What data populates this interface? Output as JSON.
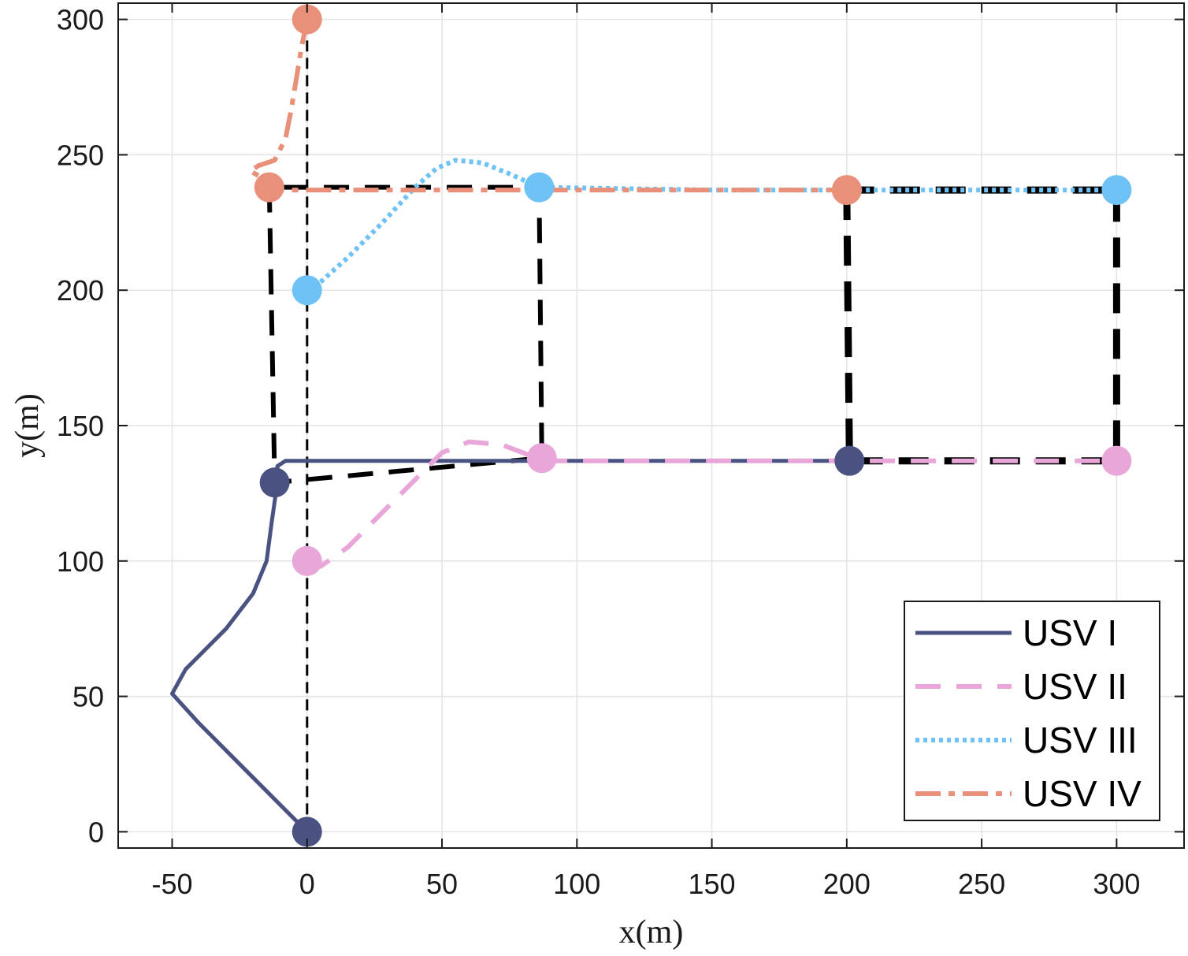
{
  "chart_data": {
    "type": "line",
    "xlabel": "x(m)",
    "ylabel": "y(m)",
    "xlim": [
      -70,
      325
    ],
    "ylim": [
      -6,
      306
    ],
    "xticks": [
      -50,
      0,
      50,
      100,
      150,
      200,
      250,
      300
    ],
    "yticks": [
      0,
      50,
      100,
      150,
      200,
      250,
      300
    ],
    "grid": true,
    "legend_position": "bottom-right",
    "series": [
      {
        "name": "USV I",
        "color": "#4a5282",
        "style": "solid",
        "points": [
          [
            0,
            0
          ],
          [
            -20,
            20
          ],
          [
            -40,
            40
          ],
          [
            -50,
            51
          ],
          [
            -45,
            60
          ],
          [
            -30,
            75
          ],
          [
            -20,
            88
          ],
          [
            -15,
            100
          ],
          [
            -13,
            115
          ],
          [
            -11,
            129
          ],
          [
            -11,
            135
          ],
          [
            -8,
            137
          ],
          [
            0,
            137
          ],
          [
            50,
            137
          ],
          [
            87,
            137
          ],
          [
            150,
            137
          ],
          [
            201,
            137
          ]
        ],
        "markers": [
          [
            0,
            0
          ],
          [
            -12,
            129
          ],
          [
            201,
            137
          ]
        ]
      },
      {
        "name": "USV II",
        "color": "#e8a7d8",
        "style": "dashed",
        "points": [
          [
            0,
            100
          ],
          [
            5,
            98
          ],
          [
            15,
            105
          ],
          [
            28,
            118
          ],
          [
            40,
            130
          ],
          [
            50,
            140
          ],
          [
            60,
            144
          ],
          [
            72,
            143
          ],
          [
            80,
            140
          ],
          [
            87,
            137
          ],
          [
            150,
            137
          ],
          [
            200,
            137
          ],
          [
            300,
            137
          ]
        ],
        "markers": [
          [
            0,
            100
          ],
          [
            87,
            138
          ],
          [
            300,
            137
          ]
        ]
      },
      {
        "name": "USV III",
        "color": "#6ec2f5",
        "style": "dotted",
        "points": [
          [
            0,
            200
          ],
          [
            5,
            203
          ],
          [
            15,
            212
          ],
          [
            28,
            225
          ],
          [
            40,
            238
          ],
          [
            48,
            245
          ],
          [
            55,
            248
          ],
          [
            65,
            247
          ],
          [
            75,
            243
          ],
          [
            86,
            238
          ],
          [
            150,
            237
          ],
          [
            200,
            237
          ],
          [
            300,
            237
          ]
        ],
        "markers": [
          [
            0,
            200
          ],
          [
            86,
            238
          ],
          [
            300,
            237
          ]
        ]
      },
      {
        "name": "USV IV",
        "color": "#e8907a",
        "style": "dashdot",
        "points": [
          [
            0,
            300
          ],
          [
            -2,
            290
          ],
          [
            -4,
            278
          ],
          [
            -6,
            266
          ],
          [
            -8,
            256
          ],
          [
            -12,
            248
          ],
          [
            -18,
            246
          ],
          [
            -21,
            244
          ],
          [
            -14,
            240
          ],
          [
            -14,
            238
          ],
          [
            -8,
            237
          ],
          [
            50,
            237
          ],
          [
            100,
            237
          ],
          [
            200,
            237
          ]
        ],
        "markers": [
          [
            0,
            300
          ],
          [
            -14,
            238
          ],
          [
            200,
            237
          ]
        ]
      }
    ],
    "reference_paths": [
      {
        "color": "#000000",
        "style": "dashed",
        "points": [
          [
            -14,
            238
          ],
          [
            -12,
            129
          ],
          [
            87,
            138
          ],
          [
            86,
            238
          ],
          [
            -14,
            238
          ]
        ]
      },
      {
        "color": "#000000",
        "style": "thick-dashed",
        "points": [
          [
            200,
            237
          ],
          [
            201,
            137
          ],
          [
            300,
            137
          ],
          [
            300,
            237
          ],
          [
            200,
            237
          ]
        ]
      },
      {
        "color": "#000000",
        "style": "thin-dashed",
        "points": [
          [
            0,
            0
          ],
          [
            0,
            300
          ]
        ]
      }
    ]
  }
}
